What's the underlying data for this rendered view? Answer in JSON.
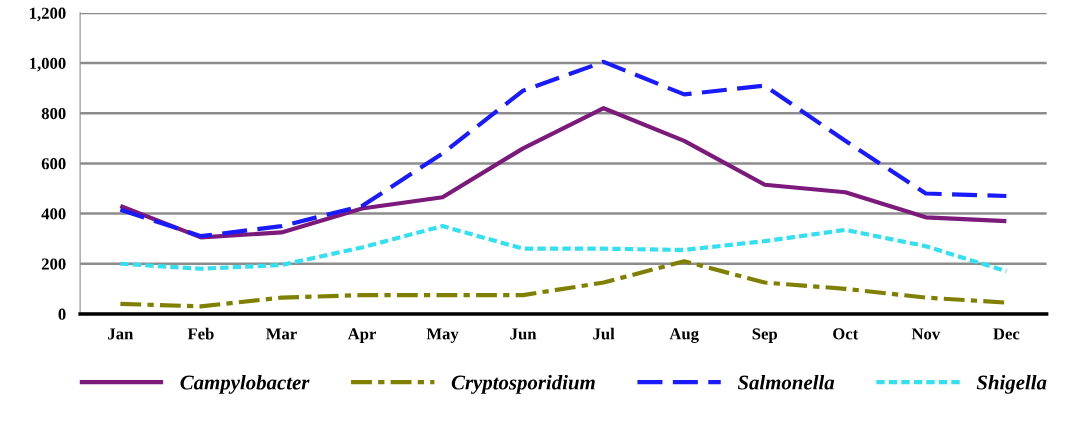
{
  "chart_data": {
    "type": "line",
    "categories": [
      "Jan",
      "Feb",
      "Mar",
      "Apr",
      "May",
      "Jun",
      "Jul",
      "Aug",
      "Sep",
      "Oct",
      "Nov",
      "Dec"
    ],
    "series": [
      {
        "name": "Campylobacter",
        "color": "#7b1a7b",
        "line_style": "solid",
        "values": [
          430,
          305,
          325,
          420,
          465,
          660,
          820,
          690,
          515,
          485,
          385,
          370
        ]
      },
      {
        "name": "Cryptosporidium",
        "color": "#808000",
        "line_style": "dashdot",
        "values": [
          40,
          30,
          65,
          75,
          75,
          75,
          125,
          210,
          125,
          100,
          65,
          45
        ]
      },
      {
        "name": "Salmonella",
        "color": "#1a1aff",
        "line_style": "dashed",
        "values": [
          415,
          310,
          350,
          430,
          640,
          890,
          1005,
          875,
          910,
          690,
          480,
          470
        ]
      },
      {
        "name": "Shigella",
        "color": "#33e0f0",
        "line_style": "dotted",
        "values": [
          200,
          180,
          195,
          265,
          350,
          260,
          260,
          255,
          290,
          335,
          270,
          170
        ]
      }
    ],
    "ylim": [
      0,
      1200
    ],
    "yticks": [
      0,
      200,
      400,
      600,
      800,
      {
        "value": 1000,
        "label": "1,000"
      },
      {
        "value": 1200,
        "label": "1,200"
      }
    ],
    "grid": "y",
    "legend": "bottom",
    "marker": "none"
  }
}
